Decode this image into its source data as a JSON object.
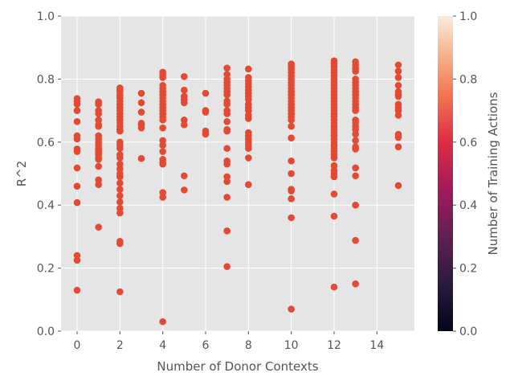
{
  "chart_data": {
    "type": "scatter",
    "xlabel": "Number of Donor Contexts",
    "ylabel": "R^2",
    "xlim": [
      -0.75,
      15.75
    ],
    "ylim": [
      0,
      1
    ],
    "xticks": [
      "0",
      "2",
      "4",
      "6",
      "8",
      "10",
      "12",
      "14"
    ],
    "xtick_values": [
      0,
      2,
      4,
      6,
      8,
      10,
      12,
      14
    ],
    "yticks": [
      "0.0",
      "0.2",
      "0.4",
      "0.6",
      "0.8",
      "1.0"
    ],
    "ytick_values": [
      0,
      0.2,
      0.4,
      0.6,
      0.8,
      1.0
    ],
    "grid": true,
    "marker_color": "#E24A33",
    "background": "#E5E5E5",
    "colorbar": {
      "label": "Number of Training Actions",
      "range": [
        0,
        1
      ],
      "ticks": [
        "0.0",
        "0.2",
        "0.4",
        "0.6",
        "0.8",
        "1.0"
      ],
      "tick_values": [
        0,
        0.2,
        0.4,
        0.6,
        0.8,
        1.0
      ],
      "colormap": "rocket"
    },
    "points": [
      {
        "x": 0,
        "y": [
          0.738,
          0.73,
          0.72,
          0.7,
          0.665,
          0.62,
          0.61,
          0.578,
          0.57,
          0.518,
          0.46,
          0.408,
          0.24,
          0.225,
          0.13
        ]
      },
      {
        "x": 1,
        "y": [
          0.728,
          0.72,
          0.7,
          0.69,
          0.67,
          0.655,
          0.65,
          0.62,
          0.61,
          0.6,
          0.59,
          0.58,
          0.575,
          0.57,
          0.565,
          0.56,
          0.55,
          0.545,
          0.523,
          0.48,
          0.465,
          0.33
        ]
      },
      {
        "x": 2,
        "y": [
          0.772,
          0.765,
          0.76,
          0.75,
          0.745,
          0.74,
          0.73,
          0.72,
          0.71,
          0.7,
          0.69,
          0.68,
          0.67,
          0.66,
          0.65,
          0.64,
          0.635,
          0.6,
          0.59,
          0.58,
          0.56,
          0.55,
          0.53,
          0.515,
          0.5,
          0.49,
          0.47,
          0.45,
          0.43,
          0.41,
          0.39,
          0.375,
          0.285,
          0.278,
          0.125
        ]
      },
      {
        "x": 3,
        "y": [
          0.755,
          0.725,
          0.695,
          0.66,
          0.655,
          0.645,
          0.548
        ]
      },
      {
        "x": 4,
        "y": [
          0.822,
          0.815,
          0.805,
          0.78,
          0.77,
          0.76,
          0.75,
          0.74,
          0.73,
          0.72,
          0.71,
          0.7,
          0.69,
          0.68,
          0.67,
          0.645,
          0.605,
          0.59,
          0.57,
          0.545,
          0.535,
          0.53,
          0.44,
          0.425,
          0.03
        ]
      },
      {
        "x": 5,
        "y": [
          0.808,
          0.765,
          0.745,
          0.735,
          0.725,
          0.67,
          0.655,
          0.493,
          0.448
        ]
      },
      {
        "x": 6,
        "y": [
          0.755,
          0.7,
          0.695,
          0.635,
          0.625
        ]
      },
      {
        "x": 7,
        "y": [
          0.835,
          0.815,
          0.8,
          0.79,
          0.78,
          0.77,
          0.76,
          0.75,
          0.73,
          0.72,
          0.7,
          0.69,
          0.665,
          0.64,
          0.635,
          0.58,
          0.54,
          0.53,
          0.49,
          0.475,
          0.425,
          0.318,
          0.205
        ]
      },
      {
        "x": 8,
        "y": [
          0.832,
          0.805,
          0.795,
          0.785,
          0.775,
          0.765,
          0.755,
          0.745,
          0.735,
          0.72,
          0.71,
          0.7,
          0.685,
          0.675,
          0.63,
          0.62,
          0.61,
          0.6,
          0.59,
          0.58,
          0.55,
          0.465
        ]
      },
      {
        "x": 10,
        "y": [
          0.848,
          0.84,
          0.83,
          0.82,
          0.81,
          0.8,
          0.79,
          0.78,
          0.77,
          0.76,
          0.75,
          0.74,
          0.73,
          0.72,
          0.71,
          0.7,
          0.69,
          0.68,
          0.67,
          0.65,
          0.613,
          0.54,
          0.5,
          0.45,
          0.445,
          0.42,
          0.36,
          0.07
        ]
      },
      {
        "x": 12,
        "y": [
          0.858,
          0.85,
          0.84,
          0.83,
          0.82,
          0.81,
          0.8,
          0.79,
          0.78,
          0.77,
          0.76,
          0.75,
          0.74,
          0.73,
          0.72,
          0.71,
          0.7,
          0.69,
          0.68,
          0.67,
          0.66,
          0.65,
          0.64,
          0.63,
          0.62,
          0.61,
          0.6,
          0.59,
          0.58,
          0.57,
          0.56,
          0.55,
          0.525,
          0.51,
          0.5,
          0.49,
          0.435,
          0.365,
          0.14
        ]
      },
      {
        "x": 13,
        "y": [
          0.855,
          0.845,
          0.835,
          0.825,
          0.8,
          0.79,
          0.78,
          0.77,
          0.76,
          0.75,
          0.74,
          0.73,
          0.72,
          0.71,
          0.7,
          0.67,
          0.66,
          0.65,
          0.64,
          0.625,
          0.605,
          0.585,
          0.578,
          0.518,
          0.493,
          0.4,
          0.288,
          0.15
        ]
      },
      {
        "x": 15,
        "y": [
          0.845,
          0.825,
          0.805,
          0.78,
          0.76,
          0.75,
          0.745,
          0.72,
          0.71,
          0.7,
          0.685,
          0.625,
          0.615,
          0.585,
          0.462
        ]
      }
    ]
  }
}
